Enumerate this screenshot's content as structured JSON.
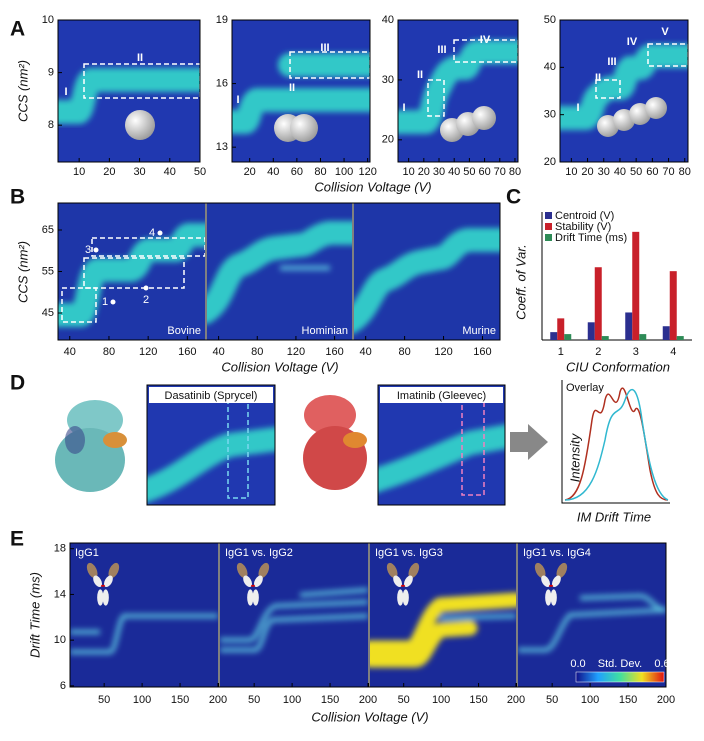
{
  "panel_a": {
    "label": "A",
    "y_label": "CCS (nm²)",
    "x_label": "Collision Voltage (V)",
    "plots": [
      {
        "xlim": [
          3,
          50
        ],
        "xticks": [
          10,
          20,
          30,
          40,
          50
        ],
        "ylim": [
          7.3,
          10
        ],
        "yticks": [
          8,
          9,
          10
        ],
        "states": [
          "I",
          "II"
        ]
      },
      {
        "xlim": [
          5,
          122
        ],
        "xticks": [
          20,
          40,
          60,
          80,
          100,
          120
        ],
        "ylim": [
          12.3,
          19
        ],
        "yticks": [
          13,
          16,
          19
        ],
        "states": [
          "I",
          "II",
          "III"
        ]
      },
      {
        "xlim": [
          3,
          82
        ],
        "xticks": [
          10,
          20,
          30,
          40,
          50,
          60,
          70,
          80
        ],
        "ylim": [
          16.3,
          40
        ],
        "yticks": [
          20,
          30,
          40
        ],
        "states": [
          "I",
          "II",
          "III",
          "IV"
        ]
      },
      {
        "xlim": [
          3,
          82
        ],
        "xticks": [
          10,
          20,
          30,
          40,
          50,
          60,
          70,
          80
        ],
        "ylim": [
          20,
          50
        ],
        "yticks": [
          20,
          30,
          40,
          50
        ],
        "states": [
          "I",
          "II",
          "III",
          "IV",
          "V"
        ]
      }
    ]
  },
  "panel_b": {
    "label": "B",
    "y_label": "CCS (nm²)",
    "x_label": "Collision Voltage (V)",
    "ylim": [
      38.5,
      71.5
    ],
    "yticks": [
      45,
      55,
      65
    ],
    "xlim": [
      28,
      178
    ],
    "xticks": [
      40,
      80,
      120,
      160
    ],
    "species": [
      "Bovine",
      "Hominian",
      "Murine"
    ],
    "markers": [
      "1",
      "2",
      "3",
      "4"
    ]
  },
  "panel_c": {
    "label": "C",
    "type": "bar",
    "y_label": "Coeff. of Var.",
    "x_label": "CIU Conformation",
    "categories": [
      "1",
      "2",
      "3",
      "4"
    ],
    "ylim": [
      0,
      0.6
    ],
    "series": [
      {
        "name": "Centroid (V)",
        "color": "#2b2f8f",
        "values": [
          0.04,
          0.09,
          0.14,
          0.07
        ]
      },
      {
        "name": "Stability (V)",
        "color": "#c8202a",
        "values": [
          0.11,
          0.37,
          0.55,
          0.35
        ]
      },
      {
        "name": "Drift Time (ms)",
        "color": "#2e8b57",
        "values": [
          0.03,
          0.02,
          0.03,
          0.02
        ]
      }
    ]
  },
  "panel_d": {
    "label": "D",
    "drugs": [
      "Dasatinib (Sprycel)",
      "Imatinib (Gleevec)"
    ],
    "overlay_title": "Overlay",
    "y_label": "Intensity",
    "x_label": "IM Drift Time"
  },
  "panel_e": {
    "label": "E",
    "y_label": "Drift Time (ms)",
    "x_label": "Collision Voltage (V)",
    "ylim": [
      5.9,
      18.5
    ],
    "yticks": [
      6,
      10,
      14,
      18
    ],
    "xlim": [
      5,
      200
    ],
    "xticks": [
      50,
      100,
      150,
      200
    ],
    "comparisons": [
      "IgG1",
      "IgG1 vs. IgG2",
      "IgG1 vs. IgG3",
      "IgG1 vs. IgG4"
    ],
    "colorbar": {
      "title": "Std. Dev.",
      "range": [
        {
          "value": 0,
          "label": "0.0"
        },
        {
          "value": 0.6,
          "label": "0.6"
        }
      ]
    }
  }
}
